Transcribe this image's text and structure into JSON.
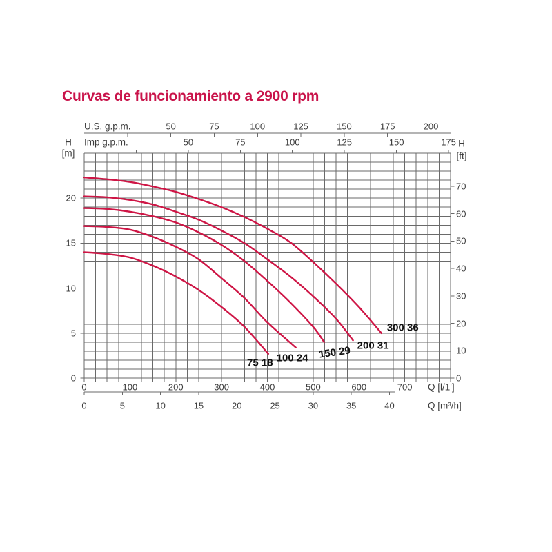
{
  "title": {
    "text": "Curvas de funcionamiento a 2900 rpm",
    "color": "#c9134a"
  },
  "colors": {
    "curve": "#ce1545",
    "grid": "#6a6a6a",
    "axis": "#6a6a6a",
    "text": "#3d3d3d",
    "curve_label": "#111111"
  },
  "chart_data": {
    "type": "line",
    "title": "Curvas de funcionamiento a 2900 rpm",
    "x_unit_primary": "l/1'",
    "y_unit_primary": "m",
    "x_range": [
      0,
      800
    ],
    "y_range": [
      0,
      25
    ],
    "x_minor_step": 25,
    "y_minor_step": 1,
    "grid": true,
    "axes": {
      "top_us": {
        "label": "U.S. g.p.m.",
        "to_lmin": 3.78541,
        "tick_step": 25,
        "tick_min": 25,
        "tick_max": 200,
        "labeled_ticks": [
          50,
          75,
          100,
          125,
          150,
          175,
          200
        ]
      },
      "top_imp": {
        "label": "Imp g.p.m.",
        "to_lmin": 4.54609,
        "tick_step": 25,
        "tick_min": 25,
        "tick_max": 175,
        "labeled_ticks": [
          50,
          75,
          100,
          125,
          150,
          175
        ]
      },
      "left": {
        "title": "H",
        "unit": "[m]",
        "labeled_ticks": [
          0,
          5,
          10,
          15,
          20
        ]
      },
      "right": {
        "title": "H",
        "unit": "[ft]",
        "to_m": 0.3048,
        "labeled_ticks": [
          0,
          10,
          20,
          30,
          40,
          50,
          60,
          70
        ]
      },
      "bottom_lmin": {
        "label": "Q [l/1']",
        "labeled_ticks": [
          0,
          100,
          200,
          300,
          400,
          500,
          600,
          700
        ]
      },
      "bottom_m3h": {
        "label": "Q [m³/h]",
        "to_lmin": 16.6667,
        "tick_step": 5,
        "tick_min": 0,
        "tick_max": 40,
        "labeled_ticks": [
          0,
          5,
          10,
          15,
          20,
          25,
          30,
          35,
          40
        ]
      }
    },
    "series": [
      {
        "name": "75 18",
        "points": [
          [
            0,
            14.0
          ],
          [
            50,
            13.8
          ],
          [
            100,
            13.4
          ],
          [
            150,
            12.5
          ],
          [
            200,
            11.3
          ],
          [
            250,
            9.8
          ],
          [
            300,
            7.9
          ],
          [
            350,
            5.7
          ],
          [
            402,
            2.7
          ]
        ],
        "label_offset": [
          -12,
          13
        ],
        "label_rotate": 0
      },
      {
        "name": "100 24",
        "points": [
          [
            0,
            16.9
          ],
          [
            50,
            16.8
          ],
          [
            100,
            16.5
          ],
          [
            150,
            15.7
          ],
          [
            200,
            14.6
          ],
          [
            250,
            13.2
          ],
          [
            300,
            11.1
          ],
          [
            350,
            8.9
          ],
          [
            400,
            6.2
          ],
          [
            462,
            3.4
          ]
        ],
        "label_offset": [
          -5,
          15
        ],
        "label_rotate": 0
      },
      {
        "name": "150 29",
        "points": [
          [
            0,
            18.9
          ],
          [
            50,
            18.8
          ],
          [
            100,
            18.5
          ],
          [
            150,
            18.0
          ],
          [
            200,
            17.3
          ],
          [
            250,
            16.2
          ],
          [
            300,
            14.8
          ],
          [
            350,
            13.0
          ],
          [
            400,
            10.8
          ],
          [
            450,
            8.4
          ],
          [
            500,
            5.7
          ],
          [
            524,
            4.0
          ]
        ],
        "label_offset": [
          15,
          15
        ],
        "label_rotate": -8
      },
      {
        "name": "200 31",
        "points": [
          [
            0,
            20.2
          ],
          [
            50,
            20.1
          ],
          [
            100,
            19.8
          ],
          [
            150,
            19.3
          ],
          [
            200,
            18.5
          ],
          [
            250,
            17.6
          ],
          [
            300,
            16.4
          ],
          [
            350,
            15.0
          ],
          [
            400,
            13.2
          ],
          [
            450,
            11.3
          ],
          [
            500,
            9.1
          ],
          [
            550,
            6.6
          ],
          [
            587,
            4.2
          ]
        ],
        "label_offset": [
          29,
          8
        ],
        "label_rotate": 0
      },
      {
        "name": "300 36",
        "points": [
          [
            0,
            22.3
          ],
          [
            50,
            22.1
          ],
          [
            100,
            21.8
          ],
          [
            150,
            21.3
          ],
          [
            200,
            20.7
          ],
          [
            250,
            19.9
          ],
          [
            300,
            19.0
          ],
          [
            350,
            17.9
          ],
          [
            400,
            16.6
          ],
          [
            450,
            15.1
          ],
          [
            500,
            12.9
          ],
          [
            550,
            10.5
          ],
          [
            600,
            7.9
          ],
          [
            649,
            5.0
          ]
        ],
        "label_offset": [
          31,
          -8
        ],
        "label_rotate": 0
      }
    ]
  }
}
